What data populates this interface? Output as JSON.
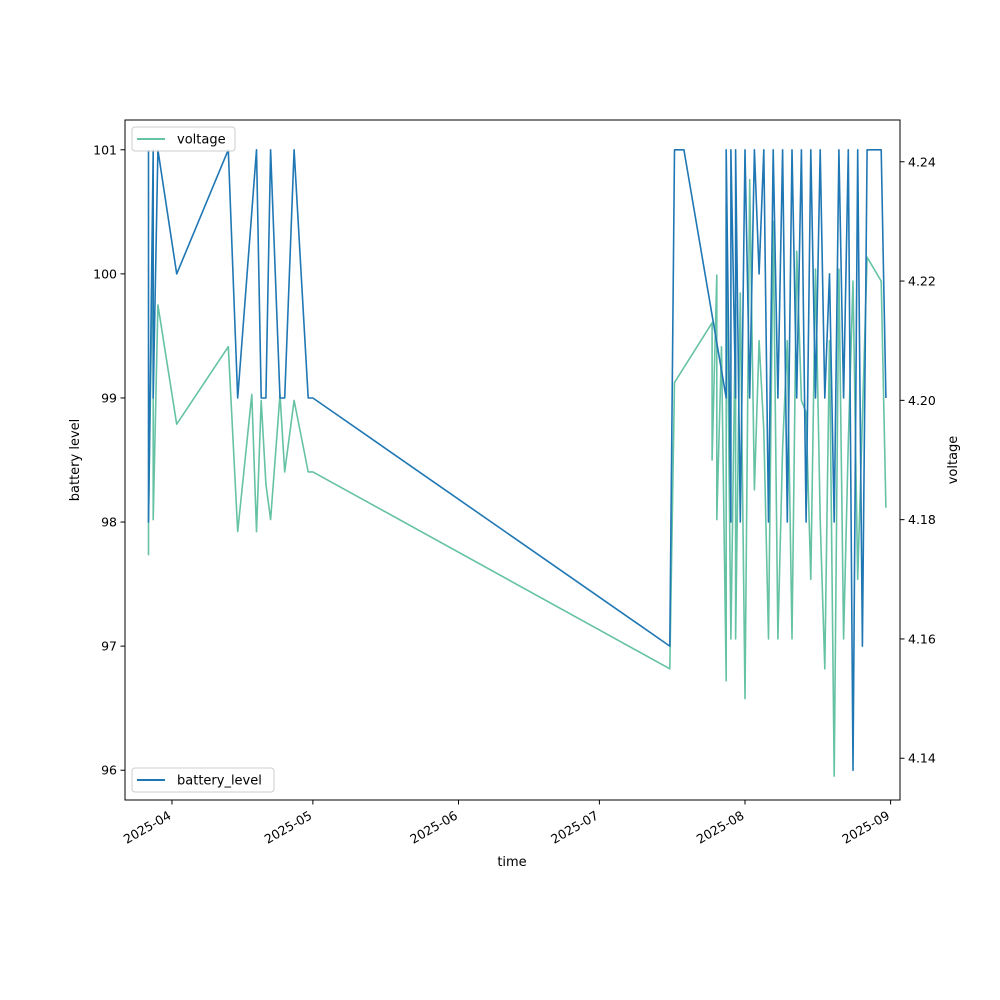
{
  "chart_data": {
    "type": "line",
    "xlabel": "time",
    "ylabel_left": "battery level",
    "ylabel_right": "voltage",
    "xlim": [
      "2025-03-22",
      "2025-09-03"
    ],
    "ylim_left": [
      95.76,
      101.24
    ],
    "ylim_right": [
      4.133,
      4.247
    ],
    "x_ticks": [
      "2025-04",
      "2025-05",
      "2025-06",
      "2025-07",
      "2025-08",
      "2025-09"
    ],
    "y_ticks_left": [
      96,
      97,
      98,
      99,
      100,
      101
    ],
    "y_ticks_right": [
      4.14,
      4.16,
      4.18,
      4.2,
      4.22,
      4.24
    ],
    "grid": false,
    "legend_left": {
      "placement": "lower-left",
      "label": "battery_level"
    },
    "legend_right": {
      "placement": "upper-left",
      "label": "voltage"
    },
    "series": [
      {
        "name": "battery_level",
        "axis": "left",
        "color": "#1f77b4",
        "x": [
          "2025-03-27",
          "2025-03-27",
          "2025-03-28",
          "2025-03-28",
          "2025-03-29",
          "2025-03-29",
          "2025-04-02",
          "2025-04-13",
          "2025-04-15",
          "2025-04-19",
          "2025-04-20",
          "2025-04-21",
          "2025-04-22",
          "2025-04-24",
          "2025-04-25",
          "2025-04-27",
          "2025-04-30",
          "2025-05-01",
          "2025-07-16",
          "2025-07-17",
          "2025-07-19",
          "2025-07-28",
          "2025-07-28",
          "2025-07-29",
          "2025-07-29",
          "2025-07-30",
          "2025-07-30",
          "2025-07-31",
          "2025-08-01",
          "2025-08-02",
          "2025-08-03",
          "2025-08-04",
          "2025-08-05",
          "2025-08-06",
          "2025-08-07",
          "2025-08-08",
          "2025-08-09",
          "2025-08-10",
          "2025-08-11",
          "2025-08-12",
          "2025-08-13",
          "2025-08-14",
          "2025-08-15",
          "2025-08-16",
          "2025-08-17",
          "2025-08-18",
          "2025-08-19",
          "2025-08-20",
          "2025-08-21",
          "2025-08-22",
          "2025-08-23",
          "2025-08-24",
          "2025-08-25",
          "2025-08-26",
          "2025-08-27",
          "2025-08-28",
          "2025-08-29",
          "2025-08-30",
          "2025-08-31"
        ],
        "y": [
          101,
          98,
          101,
          99,
          101,
          101,
          100,
          101,
          99,
          101,
          99,
          99,
          101,
          99,
          99,
          101,
          99,
          99,
          97,
          101,
          101,
          99,
          101,
          98,
          101,
          99,
          101,
          98,
          101,
          99,
          101,
          100,
          101,
          98,
          101,
          99,
          101,
          98,
          101,
          99,
          101,
          98,
          101,
          99,
          101,
          99,
          100,
          98,
          101,
          99,
          101,
          96,
          101,
          97,
          101,
          101,
          101,
          101,
          99
        ]
      },
      {
        "name": "voltage",
        "axis": "right",
        "color": "#66c2a5",
        "x": [
          "2025-03-27",
          "2025-03-27",
          "2025-03-28",
          "2025-03-28",
          "2025-03-29",
          "2025-04-02",
          "2025-04-13",
          "2025-04-15",
          "2025-04-18",
          "2025-04-19",
          "2025-04-20",
          "2025-04-21",
          "2025-04-22",
          "2025-04-24",
          "2025-04-25",
          "2025-04-27",
          "2025-04-30",
          "2025-05-01",
          "2025-07-16",
          "2025-07-17",
          "2025-07-25",
          "2025-07-25",
          "2025-07-26",
          "2025-07-26",
          "2025-07-27",
          "2025-07-28",
          "2025-07-28",
          "2025-07-29",
          "2025-07-30",
          "2025-07-30",
          "2025-07-31",
          "2025-08-01",
          "2025-08-02",
          "2025-08-03",
          "2025-08-04",
          "2025-08-05",
          "2025-08-06",
          "2025-08-07",
          "2025-08-08",
          "2025-08-09",
          "2025-08-10",
          "2025-08-11",
          "2025-08-12",
          "2025-08-13",
          "2025-08-14",
          "2025-08-15",
          "2025-08-16",
          "2025-08-17",
          "2025-08-18",
          "2025-08-19",
          "2025-08-20",
          "2025-08-21",
          "2025-08-22",
          "2025-08-23",
          "2025-08-24",
          "2025-08-25",
          "2025-08-27",
          "2025-08-30",
          "2025-08-31"
        ],
        "y": [
          4.174,
          4.18,
          4.23,
          4.18,
          4.216,
          4.196,
          4.209,
          4.178,
          4.201,
          4.178,
          4.2,
          4.186,
          4.18,
          4.201,
          4.188,
          4.2,
          4.188,
          4.188,
          4.155,
          4.203,
          4.213,
          4.19,
          4.221,
          4.18,
          4.209,
          4.153,
          4.233,
          4.16,
          4.216,
          4.16,
          4.218,
          4.15,
          4.237,
          4.185,
          4.21,
          4.195,
          4.16,
          4.23,
          4.16,
          4.192,
          4.21,
          4.16,
          4.225,
          4.2,
          4.198,
          4.17,
          4.222,
          4.18,
          4.155,
          4.21,
          4.137,
          4.222,
          4.16,
          4.193,
          4.22,
          4.17,
          4.224,
          4.22,
          4.182
        ]
      }
    ]
  }
}
